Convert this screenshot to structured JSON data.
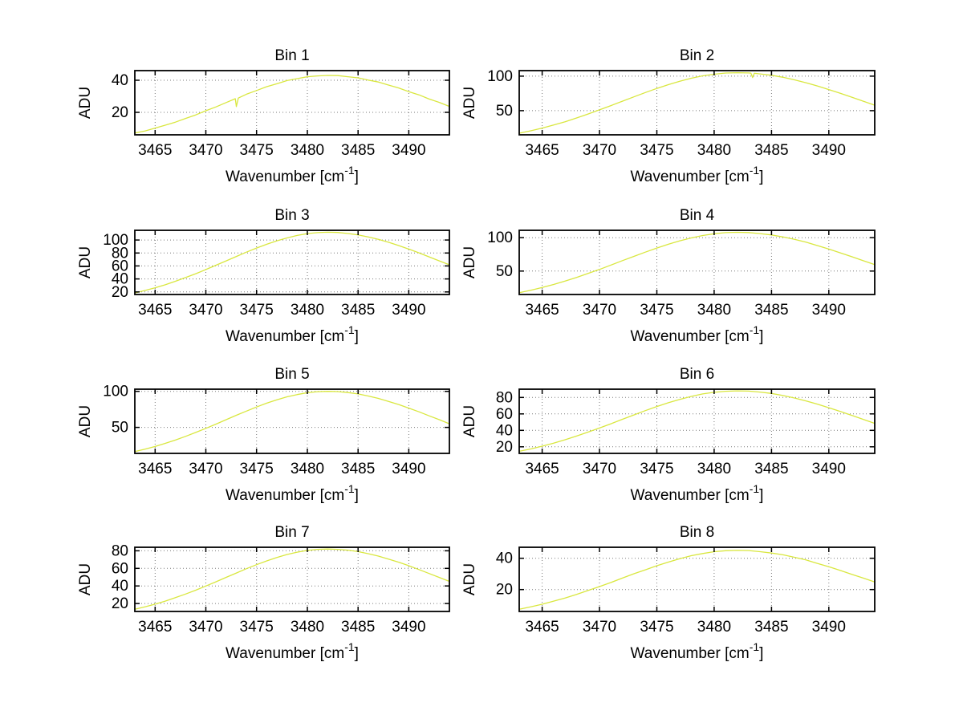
{
  "figure": {
    "background": "#ffffff",
    "line_color": "#d9e73f",
    "grid_color": "#7a7a7a",
    "axis_color": "#000000",
    "ylabel": "ADU",
    "xlabel": "Wavenumber [cm⁻¹]",
    "xlabel_parts": [
      "Wavenumber [cm",
      "-1",
      "]"
    ],
    "xlim": [
      3463,
      3494
    ],
    "xticks": [
      3465,
      3470,
      3475,
      3480,
      3485,
      3490
    ],
    "x": [
      3463,
      3464,
      3465,
      3466,
      3467,
      3468,
      3469,
      3470,
      3471,
      3472,
      3473,
      3474,
      3475,
      3476,
      3477,
      3478,
      3479,
      3480,
      3481,
      3482,
      3483,
      3484,
      3485,
      3486,
      3487,
      3488,
      3489,
      3490,
      3491,
      3492,
      3493,
      3494
    ]
  },
  "chart_data": [
    {
      "type": "line",
      "title": "Bin 1",
      "xlabel": "Wavenumber [cm⁻¹]",
      "ylabel": "ADU",
      "ylim": [
        6,
        46
      ],
      "yticks": [
        20,
        40
      ],
      "x": [
        3463,
        3464,
        3465,
        3466,
        3467,
        3468,
        3469,
        3470,
        3471,
        3472,
        3472.9,
        3473,
        3473.2,
        3474,
        3475,
        3476,
        3477,
        3478,
        3479,
        3480,
        3481,
        3482,
        3483,
        3484,
        3485,
        3486,
        3487,
        3488,
        3489,
        3490,
        3491,
        3492,
        3493,
        3494
      ],
      "y": [
        7.1,
        8.4,
        10.2,
        12.0,
        13.9,
        16.2,
        18.4,
        21.0,
        23.4,
        26.1,
        28.5,
        23.6,
        28.9,
        31.3,
        33.6,
        36.0,
        37.8,
        39.8,
        41.0,
        42.2,
        42.7,
        43.0,
        42.9,
        42.2,
        41.5,
        40.1,
        38.9,
        37.0,
        35.2,
        32.9,
        30.9,
        28.3,
        26.2,
        23.7
      ]
    },
    {
      "type": "line",
      "title": "Bin 2",
      "xlabel": "Wavenumber [cm⁻¹]",
      "ylabel": "ADU",
      "ylim": [
        15,
        108
      ],
      "yticks": [
        50,
        100
      ],
      "x": [
        3463,
        3464,
        3465,
        3466,
        3467,
        3468,
        3469,
        3470,
        3471,
        3472,
        3473,
        3474,
        3475,
        3476,
        3477,
        3478,
        3479,
        3480,
        3481,
        3482,
        3483,
        3483.2,
        3483.35,
        3483.5,
        3484,
        3485,
        3486,
        3487,
        3488,
        3489,
        3490,
        3491,
        3492,
        3493,
        3494
      ],
      "y": [
        17.3,
        20.8,
        24.8,
        29.2,
        34.0,
        39.4,
        45.1,
        51.2,
        57.3,
        63.7,
        70.0,
        76.3,
        82.2,
        87.6,
        92.7,
        97.0,
        100.4,
        102.8,
        104.5,
        105.0,
        104.6,
        104.4,
        98.0,
        104.2,
        103.2,
        101.2,
        98.3,
        94.6,
        90.5,
        85.8,
        80.6,
        75.2,
        69.5,
        63.7,
        57.9
      ]
    },
    {
      "type": "line",
      "title": "Bin 3",
      "xlabel": "Wavenumber [cm⁻¹]",
      "ylabel": "ADU",
      "ylim": [
        16,
        115
      ],
      "yticks": [
        20,
        40,
        60,
        80,
        100
      ],
      "y": [
        18.4,
        22.2,
        26.4,
        31.0,
        36.4,
        42.1,
        48.1,
        54.5,
        61.2,
        67.9,
        74.7,
        81.4,
        87.7,
        93.5,
        98.8,
        103.3,
        107.1,
        109.9,
        111.4,
        112.0,
        111.6,
        110.1,
        107.9,
        104.7,
        101.0,
        96.6,
        91.5,
        86.0,
        80.2,
        74.1,
        67.9,
        61.8
      ]
    },
    {
      "type": "line",
      "title": "Bin 4",
      "xlabel": "Wavenumber [cm⁻¹]",
      "ylabel": "ADU",
      "ylim": [
        15,
        111
      ],
      "yticks": [
        50,
        100
      ],
      "y": [
        17.8,
        21.4,
        25.4,
        30.0,
        35.1,
        40.6,
        46.4,
        52.5,
        59.0,
        65.6,
        72.0,
        78.4,
        84.5,
        90.1,
        95.3,
        99.6,
        103.2,
        105.8,
        107.5,
        108.0,
        107.7,
        106.1,
        104.1,
        101.0,
        97.4,
        93.2,
        88.2,
        82.9,
        77.3,
        71.5,
        65.5,
        59.6
      ]
    },
    {
      "type": "line",
      "title": "Bin 5",
      "xlabel": "Wavenumber [cm⁻¹]",
      "ylabel": "ADU",
      "ylim": [
        14,
        103
      ],
      "yticks": [
        50,
        100
      ],
      "y": [
        16.5,
        19.9,
        23.6,
        27.9,
        32.5,
        37.6,
        43.0,
        48.7,
        54.6,
        60.7,
        66.8,
        72.6,
        78.3,
        83.6,
        88.3,
        92.4,
        95.6,
        98.1,
        99.5,
        100.0,
        99.7,
        98.3,
        96.4,
        93.5,
        90.2,
        86.1,
        81.7,
        76.7,
        71.6,
        66.1,
        60.7,
        55.1
      ]
    },
    {
      "type": "line",
      "title": "Bin 6",
      "xlabel": "Wavenumber [cm⁻¹]",
      "ylabel": "ADU",
      "ylim": [
        12,
        90
      ],
      "yticks": [
        20,
        40,
        60,
        80
      ],
      "y": [
        14.5,
        17.4,
        20.8,
        24.5,
        28.6,
        33.1,
        37.8,
        42.8,
        48.0,
        53.4,
        58.7,
        64.0,
        68.9,
        73.5,
        77.6,
        81.2,
        84.2,
        86.2,
        87.5,
        88.0,
        87.7,
        86.5,
        84.8,
        82.3,
        79.3,
        75.8,
        71.9,
        67.5,
        63.0,
        58.2,
        53.3,
        48.5
      ]
    },
    {
      "type": "line",
      "title": "Bin 7",
      "xlabel": "Wavenumber [cm⁻¹]",
      "ylabel": "ADU",
      "ylim": [
        11,
        84
      ],
      "yticks": [
        20,
        40,
        60,
        80
      ],
      "y": [
        13.5,
        16.2,
        19.3,
        22.8,
        26.7,
        30.8,
        35.2,
        39.9,
        44.8,
        49.8,
        54.7,
        59.6,
        64.2,
        68.5,
        72.4,
        75.8,
        78.4,
        80.4,
        81.6,
        82.0,
        81.6,
        80.7,
        79.1,
        76.7,
        74.0,
        70.6,
        67.0,
        63.0,
        58.6,
        54.2,
        49.7,
        45.2
      ]
    },
    {
      "type": "line",
      "title": "Bin 8",
      "xlabel": "Wavenumber [cm⁻¹]",
      "ylabel": "ADU",
      "ylim": [
        6,
        47
      ],
      "yticks": [
        20,
        40
      ],
      "y": [
        7.4,
        8.9,
        10.6,
        12.6,
        14.6,
        16.9,
        19.4,
        21.9,
        24.5,
        27.3,
        30.1,
        32.6,
        35.2,
        37.5,
        39.7,
        41.6,
        43.0,
        44.2,
        44.8,
        45.0,
        44.9,
        44.2,
        43.3,
        42.2,
        40.6,
        38.9,
        36.7,
        34.6,
        32.2,
        29.7,
        27.3,
        24.8
      ]
    }
  ]
}
